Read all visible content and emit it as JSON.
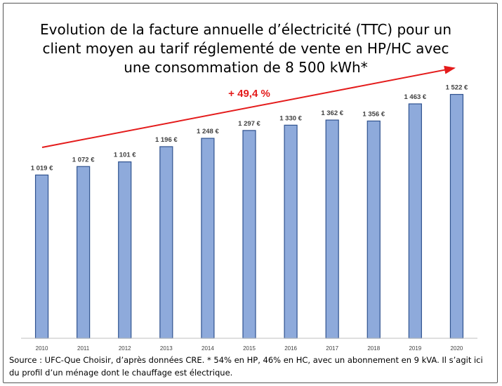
{
  "chart_data": {
    "type": "bar",
    "title": "Evolution de la facture annuelle d’électricité (TTC) pour un client moyen au tarif réglementé de vente en HP/HC avec une consommation de 8 500 kWh*",
    "categories": [
      "2010",
      "2011",
      "2012",
      "2013",
      "2014",
      "2015",
      "2016",
      "2017",
      "2018",
      "2019",
      "2020"
    ],
    "values": [
      1019,
      1072,
      1101,
      1196,
      1248,
      1297,
      1330,
      1362,
      1356,
      1463,
      1522
    ],
    "value_labels": [
      "1 019 €",
      "1 072 €",
      "1 101 €",
      "1 196 €",
      "1 248 €",
      "1 297 €",
      "1 330 €",
      "1 362 €",
      "1 356 €",
      "1 463 €",
      "1 522 €"
    ],
    "xlabel": "",
    "ylabel": "",
    "ylim": [
      0,
      1600
    ],
    "grid": false,
    "bar_color": "#8eaadb",
    "bar_edge_color": "#2f528f",
    "annotation": {
      "text": "+ 49,4 %",
      "color": "#e41b1b"
    }
  },
  "source": "Source : UFC-Que Choisir, d’après données CRE. * 54% en HP, 46% en HC, avec un abonnement en 9 kVA. Il s’agit ici du profil d’un ménage dont le chauffage est électrique."
}
